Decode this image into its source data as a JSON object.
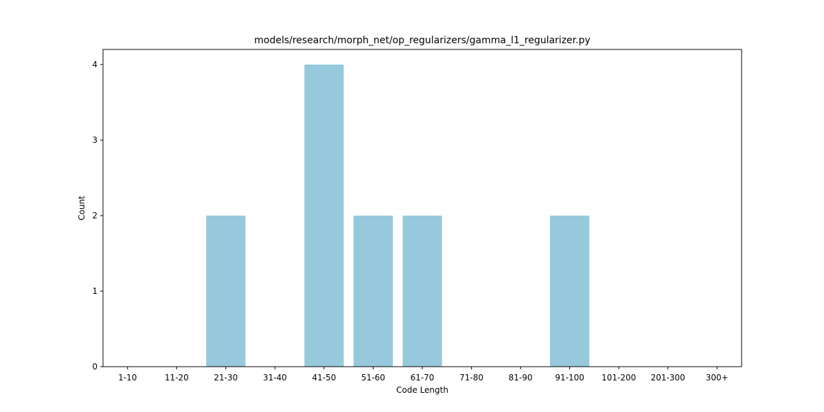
{
  "chart_data": {
    "type": "bar",
    "title": "models/research/morph_net/op_regularizers/gamma_l1_regularizer.py",
    "xlabel": "Code Length",
    "ylabel": "Count",
    "categories": [
      "1-10",
      "11-20",
      "21-30",
      "31-40",
      "41-50",
      "51-60",
      "61-70",
      "71-80",
      "81-90",
      "91-100",
      "101-200",
      "201-300",
      "300+"
    ],
    "values": [
      0,
      0,
      2,
      0,
      4,
      2,
      2,
      0,
      0,
      2,
      0,
      0,
      0
    ],
    "ylim": [
      0,
      4.2
    ],
    "yticks": [
      0,
      1,
      2,
      3,
      4
    ],
    "bar_color": "#96c9dc",
    "grid": false,
    "legend": "none"
  }
}
